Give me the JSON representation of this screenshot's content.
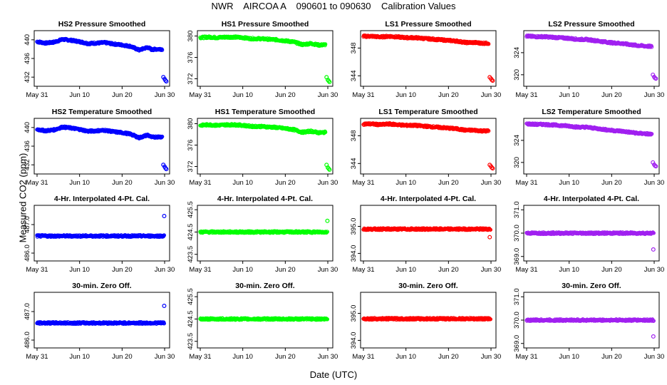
{
  "title": "NWR    AIRCOA A    090601 to 090630    Calibration Values",
  "ylabel": "Measured CO2 (ppm)",
  "xlabel": "Date (UTC)",
  "colors": {
    "blue": "#0000ff",
    "green": "#00ff00",
    "red": "#ff0000",
    "purple": "#a020f0"
  },
  "chart_data": [
    {
      "type": "scatter",
      "title": "HS2 Pressure Smoothed",
      "color": "blue",
      "x_ticks": [
        "May 31",
        "Jun 10",
        "Jun 20",
        "Jun 30"
      ],
      "x_range": [
        0,
        30.5
      ],
      "y_ticks": [
        432,
        436,
        440
      ],
      "ylim": [
        430.5,
        441.5
      ],
      "series": [
        {
          "x": [
            0,
            2,
            4,
            6,
            8,
            10,
            12,
            14,
            16,
            18,
            20,
            22,
            24,
            26,
            27,
            28,
            29.5
          ],
          "y": [
            439.6,
            439.3,
            439.5,
            440.1,
            439.9,
            439.6,
            439.2,
            439.3,
            439.4,
            439.1,
            438.9,
            438.6,
            437.8,
            438.4,
            437.9,
            438.0,
            438.0
          ]
        },
        {
          "x": [
            29.7,
            30.0,
            30.2,
            30.4
          ],
          "y": [
            432.0,
            431.6,
            431.3,
            431.1
          ]
        }
      ]
    },
    {
      "type": "scatter",
      "title": "HS1 Pressure Smoothed",
      "color": "green",
      "x_ticks": [
        "May 31",
        "Jun 10",
        "Jun 20",
        "Jun 30"
      ],
      "x_range": [
        0,
        30.5
      ],
      "y_ticks": [
        372,
        376,
        380
      ],
      "ylim": [
        371,
        380.6
      ],
      "series": [
        {
          "x": [
            0,
            2,
            4,
            6,
            8,
            10,
            12,
            14,
            16,
            18,
            20,
            22,
            24,
            26,
            28,
            29.5
          ],
          "y": [
            379.7,
            379.8,
            379.7,
            379.8,
            379.8,
            379.7,
            379.5,
            379.5,
            379.4,
            379.3,
            379.1,
            378.9,
            378.4,
            378.6,
            378.3,
            378.4
          ]
        },
        {
          "x": [
            29.7,
            30.0,
            30.2,
            30.4
          ],
          "y": [
            372.3,
            371.8,
            371.6,
            371.4
          ]
        }
      ]
    },
    {
      "type": "scatter",
      "title": "LS1 Pressure Smoothed",
      "color": "red",
      "x_ticks": [
        "May 31",
        "Jun 10",
        "Jun 20",
        "Jun 30"
      ],
      "x_range": [
        0,
        30.5
      ],
      "y_ticks": [
        344,
        348
      ],
      "ylim": [
        342.8,
        350.2
      ],
      "series": [
        {
          "x": [
            0,
            2,
            4,
            6,
            8,
            10,
            12,
            14,
            16,
            18,
            20,
            22,
            24,
            26,
            28,
            29.5
          ],
          "y": [
            349.7,
            349.7,
            349.6,
            349.7,
            349.6,
            349.5,
            349.5,
            349.4,
            349.3,
            349.2,
            349.1,
            349.0,
            348.8,
            348.8,
            348.7,
            348.7
          ]
        },
        {
          "x": [
            29.7,
            30.0,
            30.2,
            30.4
          ],
          "y": [
            343.8,
            343.6,
            343.4,
            343.3
          ]
        }
      ]
    },
    {
      "type": "scatter",
      "title": "LS2 Pressure Smoothed",
      "color": "purple",
      "x_ticks": [
        "May 31",
        "Jun 10",
        "Jun 20",
        "Jun 30"
      ],
      "x_range": [
        0,
        30.5
      ],
      "y_ticks": [
        320,
        324
      ],
      "ylim": [
        318.3,
        327.6
      ],
      "series": [
        {
          "x": [
            0,
            2,
            4,
            6,
            8,
            10,
            12,
            14,
            16,
            18,
            20,
            22,
            24,
            26,
            28,
            29.5
          ],
          "y": [
            327.0,
            326.9,
            326.9,
            326.8,
            326.7,
            326.6,
            326.4,
            326.4,
            326.2,
            326.0,
            325.8,
            325.7,
            325.5,
            325.3,
            325.2,
            325.1
          ]
        },
        {
          "x": [
            29.7,
            30.0,
            30.2,
            30.4
          ],
          "y": [
            320.0,
            319.6,
            319.4,
            319.3
          ]
        }
      ]
    },
    {
      "type": "scatter",
      "title": "HS2 Temperature Smoothed",
      "color": "blue",
      "x_ticks": [
        "May 31",
        "Jun 10",
        "Jun 20",
        "Jun 30"
      ],
      "x_range": [
        0,
        30.5
      ],
      "y_ticks": [
        432,
        436,
        440
      ],
      "ylim": [
        430.5,
        441.5
      ],
      "series": [
        {
          "x": [
            0,
            2,
            4,
            6,
            8,
            10,
            12,
            14,
            16,
            18,
            20,
            22,
            24,
            26,
            27,
            28,
            29.5
          ],
          "y": [
            439.6,
            439.3,
            439.5,
            440.1,
            439.9,
            439.6,
            439.2,
            439.3,
            439.4,
            439.1,
            438.9,
            438.6,
            437.8,
            438.4,
            437.9,
            438.0,
            438.0
          ]
        },
        {
          "x": [
            29.7,
            30.0,
            30.2,
            30.4
          ],
          "y": [
            432.0,
            431.6,
            431.3,
            431.1
          ]
        }
      ]
    },
    {
      "type": "scatter",
      "title": "HS1 Temperature Smoothed",
      "color": "green",
      "x_ticks": [
        "May 31",
        "Jun 10",
        "Jun 20",
        "Jun 30"
      ],
      "x_range": [
        0,
        30.5
      ],
      "y_ticks": [
        372,
        376,
        380
      ],
      "ylim": [
        371,
        380.6
      ],
      "series": [
        {
          "x": [
            0,
            2,
            4,
            6,
            8,
            10,
            12,
            14,
            16,
            18,
            20,
            22,
            24,
            26,
            28,
            29.5
          ],
          "y": [
            379.7,
            379.8,
            379.7,
            379.8,
            379.8,
            379.7,
            379.5,
            379.5,
            379.4,
            379.3,
            379.1,
            378.9,
            378.4,
            378.6,
            378.3,
            378.4
          ]
        },
        {
          "x": [
            29.7,
            30.0,
            30.2,
            30.4
          ],
          "y": [
            372.3,
            371.8,
            371.6,
            371.4
          ]
        }
      ]
    },
    {
      "type": "scatter",
      "title": "LS1 Temperature Smoothed",
      "color": "red",
      "x_ticks": [
        "May 31",
        "Jun 10",
        "Jun 20",
        "Jun 30"
      ],
      "x_range": [
        0,
        30.5
      ],
      "y_ticks": [
        344,
        348
      ],
      "ylim": [
        342.8,
        350.2
      ],
      "series": [
        {
          "x": [
            0,
            2,
            4,
            6,
            8,
            10,
            12,
            14,
            16,
            18,
            20,
            22,
            24,
            26,
            28,
            29.5
          ],
          "y": [
            349.7,
            349.7,
            349.6,
            349.7,
            349.6,
            349.5,
            349.5,
            349.4,
            349.3,
            349.2,
            349.1,
            349.0,
            348.8,
            348.8,
            348.7,
            348.7
          ]
        },
        {
          "x": [
            29.7,
            30.0,
            30.2,
            30.4
          ],
          "y": [
            343.8,
            343.6,
            343.4,
            343.3
          ]
        }
      ]
    },
    {
      "type": "scatter",
      "title": "LS2 Temperature Smoothed",
      "color": "purple",
      "x_ticks": [
        "May 31",
        "Jun 10",
        "Jun 20",
        "Jun 30"
      ],
      "x_range": [
        0,
        30.5
      ],
      "y_ticks": [
        320,
        324
      ],
      "ylim": [
        318.3,
        327.6
      ],
      "series": [
        {
          "x": [
            0,
            2,
            4,
            6,
            8,
            10,
            12,
            14,
            16,
            18,
            20,
            22,
            24,
            26,
            28,
            29.5
          ],
          "y": [
            327.0,
            326.9,
            326.9,
            326.8,
            326.7,
            326.6,
            326.4,
            326.4,
            326.2,
            326.0,
            325.8,
            325.7,
            325.5,
            325.3,
            325.2,
            325.1
          ]
        },
        {
          "x": [
            29.7,
            30.0,
            30.2,
            30.4
          ],
          "y": [
            320.0,
            319.6,
            319.4,
            319.3
          ]
        }
      ]
    },
    {
      "type": "scatter",
      "title": "4-Hr. Interpolated 4-Pt. Cal.",
      "color": "blue",
      "x_ticks": [
        "May 31",
        "Jun 10",
        "Jun 20",
        "Jun 30"
      ],
      "x_range": [
        0,
        30.5
      ],
      "y_ticks": [
        "486.0",
        "487.0"
      ],
      "y_tick_values": [
        486.0,
        487.0
      ],
      "ylim": [
        485.8,
        487.6
      ],
      "series": [
        {
          "x": [
            0,
            5,
            10,
            15,
            20,
            25,
            29.9
          ],
          "y": [
            486.6,
            486.6,
            486.6,
            486.6,
            486.6,
            486.6,
            486.6
          ]
        },
        {
          "x": [
            29.9
          ],
          "y": [
            487.3
          ]
        }
      ]
    },
    {
      "type": "scatter",
      "title": "4-Hr. Interpolated 4-Pt. Cal.",
      "color": "green",
      "x_ticks": [
        "May 31",
        "Jun 10",
        "Jun 20",
        "Jun 30"
      ],
      "x_range": [
        0,
        30.5
      ],
      "y_ticks": [
        "423.5",
        "424.5",
        "425.5"
      ],
      "y_tick_values": [
        423.5,
        424.5,
        425.5
      ],
      "ylim": [
        423.3,
        425.6
      ],
      "series": [
        {
          "x": [
            0,
            5,
            10,
            15,
            20,
            25,
            29.9
          ],
          "y": [
            424.5,
            424.5,
            424.5,
            424.5,
            424.5,
            424.5,
            424.5
          ]
        },
        {
          "x": [
            29.9
          ],
          "y": [
            425.0
          ]
        }
      ]
    },
    {
      "type": "scatter",
      "title": "4-Hr. Interpolated 4-Pt. Cal.",
      "color": "red",
      "x_ticks": [
        "May 31",
        "Jun 10",
        "Jun 20",
        "Jun 30"
      ],
      "x_range": [
        0,
        30.5
      ],
      "y_ticks": [
        "394.0",
        "395.0"
      ],
      "y_tick_values": [
        394.0,
        395.0
      ],
      "ylim": [
        393.8,
        395.7
      ],
      "series": [
        {
          "x": [
            0,
            5,
            10,
            15,
            20,
            25,
            29.9
          ],
          "y": [
            394.9,
            394.9,
            394.9,
            394.9,
            394.9,
            394.9,
            394.9
          ]
        },
        {
          "x": [
            29.7
          ],
          "y": [
            394.6
          ]
        }
      ]
    },
    {
      "type": "scatter",
      "title": "4-Hr. Interpolated 4-Pt. Cal.",
      "color": "purple",
      "x_ticks": [
        "May 31",
        "Jun 10",
        "Jun 20",
        "Jun 30"
      ],
      "x_range": [
        0,
        30.5
      ],
      "y_ticks": [
        "369.0",
        "370.0",
        "371.0"
      ],
      "y_tick_values": [
        369.0,
        370.0,
        371.0
      ],
      "ylim": [
        368.9,
        371.1
      ],
      "series": [
        {
          "x": [
            0,
            5,
            10,
            15,
            20,
            25,
            29.9
          ],
          "y": [
            370.0,
            370.0,
            370.0,
            370.0,
            370.0,
            370.0,
            370.0
          ]
        },
        {
          "x": [
            29.8
          ],
          "y": [
            369.3
          ]
        }
      ]
    },
    {
      "type": "scatter",
      "title": "30-min. Zero Off.",
      "color": "blue",
      "x_ticks": [
        "May 31",
        "Jun 10",
        "Jun 20",
        "Jun 30"
      ],
      "x_range": [
        0,
        30.5
      ],
      "y_ticks": [
        "486.0",
        "487.0"
      ],
      "y_tick_values": [
        486.0,
        487.0
      ],
      "ylim": [
        485.8,
        487.6
      ],
      "series": [
        {
          "x": [
            0,
            5,
            10,
            15,
            20,
            25,
            29.9
          ],
          "y": [
            486.6,
            486.6,
            486.6,
            486.6,
            486.6,
            486.6,
            486.6
          ]
        },
        {
          "x": [
            29.9
          ],
          "y": [
            487.2
          ]
        }
      ]
    },
    {
      "type": "scatter",
      "title": "30-min. Zero Off.",
      "color": "green",
      "x_ticks": [
        "May 31",
        "Jun 10",
        "Jun 20",
        "Jun 30"
      ],
      "x_range": [
        0,
        30.5
      ],
      "y_ticks": [
        "423.5",
        "424.5",
        "425.5"
      ],
      "y_tick_values": [
        423.5,
        424.5,
        425.5
      ],
      "ylim": [
        423.3,
        425.6
      ],
      "series": [
        {
          "x": [
            0,
            5,
            10,
            15,
            20,
            25,
            29.9
          ],
          "y": [
            424.5,
            424.5,
            424.5,
            424.5,
            424.5,
            424.5,
            424.5
          ]
        }
      ]
    },
    {
      "type": "scatter",
      "title": "30-min. Zero Off.",
      "color": "red",
      "x_ticks": [
        "May 31",
        "Jun 10",
        "Jun 20",
        "Jun 30"
      ],
      "x_range": [
        0,
        30.5
      ],
      "y_ticks": [
        "394.0",
        "395.0"
      ],
      "y_tick_values": [
        394.0,
        395.0
      ],
      "ylim": [
        393.8,
        395.7
      ],
      "series": [
        {
          "x": [
            0,
            5,
            10,
            15,
            20,
            25,
            29.9
          ],
          "y": [
            394.8,
            394.8,
            394.8,
            394.8,
            394.8,
            394.8,
            394.8
          ]
        }
      ]
    },
    {
      "type": "scatter",
      "title": "30-min. Zero Off.",
      "color": "purple",
      "x_ticks": [
        "May 31",
        "Jun 10",
        "Jun 20",
        "Jun 30"
      ],
      "x_range": [
        0,
        30.5
      ],
      "y_ticks": [
        "369.0",
        "370.0",
        "371.0"
      ],
      "y_tick_values": [
        369.0,
        370.0,
        371.0
      ],
      "ylim": [
        368.9,
        371.1
      ],
      "series": [
        {
          "x": [
            0,
            5,
            10,
            15,
            20,
            25,
            29.9
          ],
          "y": [
            370.0,
            370.0,
            370.0,
            370.0,
            370.0,
            370.0,
            370.0
          ]
        },
        {
          "x": [
            29.8
          ],
          "y": [
            369.3
          ]
        }
      ]
    }
  ]
}
